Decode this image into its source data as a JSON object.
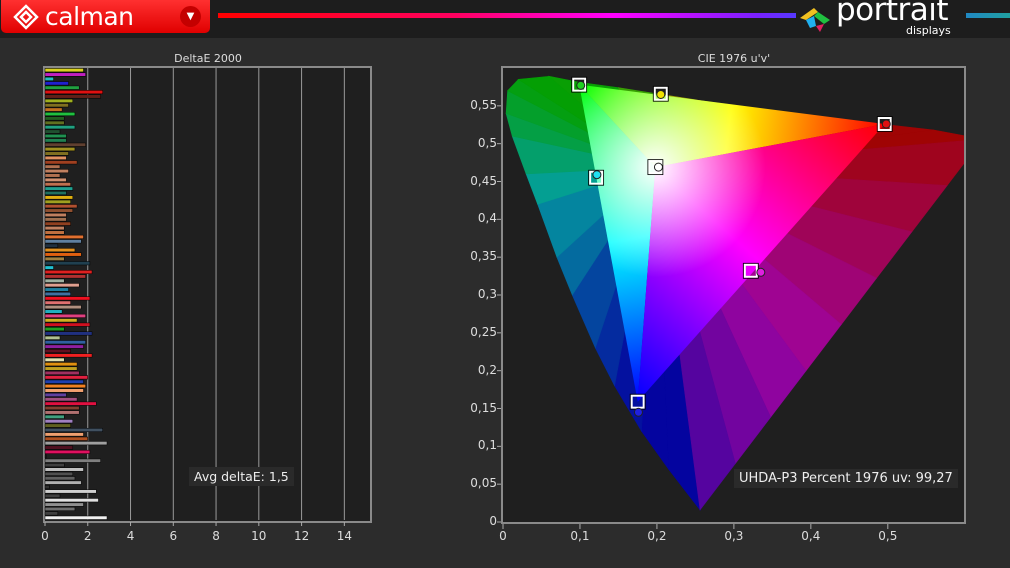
{
  "header": {
    "app_name": "calman",
    "brand_name": "portrait",
    "brand_sub": "displays",
    "dropdown_icon": "chevron-down-icon"
  },
  "deltae_chart": {
    "title": "DeltaE 2000",
    "x_ticks": [
      "0",
      "2",
      "4",
      "6",
      "8",
      "10",
      "12",
      "14"
    ],
    "x_tick_values": [
      0,
      2,
      4,
      6,
      8,
      10,
      12,
      14
    ],
    "xlim": [
      0,
      15.2
    ],
    "avg_label": "Avg deltaE:  1,5",
    "bars": [
      [
        1.8,
        "#d8d020"
      ],
      [
        1.9,
        "#c020c0"
      ],
      [
        0.4,
        "#20c0c0"
      ],
      [
        1.1,
        "#2020d0"
      ],
      [
        1.6,
        "#20a040"
      ],
      [
        2.7,
        "#e01010"
      ],
      [
        2.6,
        "#602018"
      ],
      [
        1.3,
        "#a0b020"
      ],
      [
        1.1,
        "#807020"
      ],
      [
        0.8,
        "#c07020"
      ],
      [
        1.4,
        "#20c040"
      ],
      [
        0.9,
        "#206020"
      ],
      [
        0.9,
        "#607020"
      ],
      [
        1.4,
        "#20a080"
      ],
      [
        0.7,
        "#205030"
      ],
      [
        1.0,
        "#209050"
      ],
      [
        1.0,
        "#208050"
      ],
      [
        1.9,
        "#604030"
      ],
      [
        1.4,
        "#a09020"
      ],
      [
        1.1,
        "#807020"
      ],
      [
        1.0,
        "#e09060"
      ],
      [
        1.5,
        "#a04020"
      ],
      [
        0.7,
        "#b07050"
      ],
      [
        1.1,
        "#c08060"
      ],
      [
        0.7,
        "#b07050"
      ],
      [
        1.0,
        "#d09070"
      ],
      [
        1.2,
        "#c07050"
      ],
      [
        1.3,
        "#20a090"
      ],
      [
        1.0,
        "#207060"
      ],
      [
        1.3,
        "#e0b010"
      ],
      [
        1.2,
        "#a0a020"
      ],
      [
        1.5,
        "#b05030"
      ],
      [
        1.3,
        "#905030"
      ],
      [
        1.0,
        "#c08060"
      ],
      [
        1.0,
        "#a07050"
      ],
      [
        1.2,
        "#904020"
      ],
      [
        0.9,
        "#c08060"
      ],
      [
        0.9,
        "#c07040"
      ],
      [
        1.8,
        "#e07030"
      ],
      [
        1.7,
        "#6080a0"
      ],
      [
        0.6,
        "#203040"
      ],
      [
        1.4,
        "#e09020"
      ],
      [
        1.7,
        "#e06010"
      ],
      [
        0.9,
        "#a08040"
      ],
      [
        2.1,
        "#204050"
      ],
      [
        0.4,
        "#20c0d0"
      ],
      [
        2.2,
        "#e02020"
      ],
      [
        1.9,
        "#b03030"
      ],
      [
        0.9,
        "#a0b0a0"
      ],
      [
        1.6,
        "#e0a090"
      ],
      [
        1.1,
        "#2080a0"
      ],
      [
        1.2,
        "#4070a0"
      ],
      [
        2.1,
        "#f01020"
      ],
      [
        1.2,
        "#e07070"
      ],
      [
        1.7,
        "#b09080"
      ],
      [
        0.8,
        "#20b0c0"
      ],
      [
        1.9,
        "#e04080"
      ],
      [
        1.5,
        "#d0b020"
      ],
      [
        2.1,
        "#d01020"
      ],
      [
        0.9,
        "#20a020"
      ],
      [
        2.2,
        "#203080"
      ],
      [
        0.7,
        "#b0c090"
      ],
      [
        1.9,
        "#3060a0"
      ],
      [
        1.8,
        "#9020a0"
      ],
      [
        1.2,
        "#601020"
      ],
      [
        2.2,
        "#f02020"
      ],
      [
        0.9,
        "#e0e0b0"
      ],
      [
        1.5,
        "#e09010"
      ],
      [
        1.5,
        "#c0a020"
      ],
      [
        1.6,
        "#a03060"
      ],
      [
        2.0,
        "#e02040"
      ],
      [
        1.8,
        "#2040b0"
      ],
      [
        1.9,
        "#f08020"
      ],
      [
        1.8,
        "#f0a070"
      ],
      [
        1.0,
        "#6040a0"
      ],
      [
        1.5,
        "#a05080"
      ],
      [
        2.4,
        "#e01040"
      ],
      [
        1.6,
        "#804030"
      ],
      [
        1.6,
        "#b07070"
      ],
      [
        0.9,
        "#40a080"
      ],
      [
        1.3,
        "#a080c0"
      ],
      [
        1.2,
        "#606020"
      ],
      [
        2.7,
        "#405060"
      ],
      [
        1.8,
        "#f0a070"
      ],
      [
        2.0,
        "#b05020"
      ],
      [
        2.9,
        "#a0a0a0"
      ],
      [
        1.3,
        "#501020"
      ],
      [
        2.1,
        "#e01060"
      ],
      [
        0.05,
        "#202020"
      ],
      [
        2.6,
        "#808080"
      ],
      [
        0.9,
        "#404040"
      ],
      [
        1.8,
        "#c0c0c0"
      ],
      [
        1.3,
        "#505050"
      ],
      [
        1.4,
        "#606060"
      ],
      [
        1.7,
        "#b0b0b0"
      ],
      [
        0.2,
        "#303030"
      ],
      [
        2.4,
        "#d0d0d0"
      ],
      [
        0.7,
        "#404040"
      ],
      [
        2.5,
        "#e0e0e0"
      ],
      [
        1.8,
        "#909090"
      ],
      [
        1.4,
        "#707070"
      ],
      [
        0.6,
        "#404040"
      ],
      [
        2.9,
        "#f0f0f0"
      ]
    ]
  },
  "cie_chart": {
    "title": "CIE 1976 u'v'",
    "x_ticks": [
      "0",
      "0,1",
      "0,2",
      "0,3",
      "0,4",
      "0,5"
    ],
    "x_tick_values": [
      0,
      0.1,
      0.2,
      0.3,
      0.4,
      0.5
    ],
    "y_ticks": [
      "0",
      "0,05",
      "0,1",
      "0,15",
      "0,2",
      "0,25",
      "0,3",
      "0,35",
      "0,4",
      "0,45",
      "0,5",
      "0,55"
    ],
    "y_tick_values": [
      0,
      0.05,
      0.1,
      0.15,
      0.2,
      0.25,
      0.3,
      0.35,
      0.4,
      0.45,
      0.5,
      0.55
    ],
    "xlim": [
      0,
      0.599
    ],
    "ylim": [
      0,
      0.6
    ],
    "gamut_label": "UHDA-P3 Percent 1976 uv: 99,27",
    "points": [
      {
        "name": "green",
        "color": "#20d020",
        "target": [
          0.099,
          0.578
        ],
        "measured": [
          0.101,
          0.577
        ]
      },
      {
        "name": "yellow",
        "color": "#f0e000",
        "target": [
          0.205,
          0.566
        ],
        "measured": [
          0.205,
          0.565
        ]
      },
      {
        "name": "red",
        "color": "#e01010",
        "target": [
          0.496,
          0.526
        ],
        "measured": [
          0.498,
          0.526
        ]
      },
      {
        "name": "white",
        "color": "#ffffff",
        "target": [
          0.198,
          0.469
        ],
        "measured": [
          0.202,
          0.469
        ]
      },
      {
        "name": "cyan",
        "color": "#20e0f0",
        "target": [
          0.121,
          0.455
        ],
        "measured": [
          0.122,
          0.459
        ]
      },
      {
        "name": "magenta",
        "color": "#e020e0",
        "target": [
          0.322,
          0.332
        ],
        "measured": [
          0.335,
          0.33
        ]
      },
      {
        "name": "blue",
        "color": "#2020e0",
        "target": [
          0.175,
          0.159
        ],
        "measured": [
          0.176,
          0.145
        ]
      }
    ]
  }
}
